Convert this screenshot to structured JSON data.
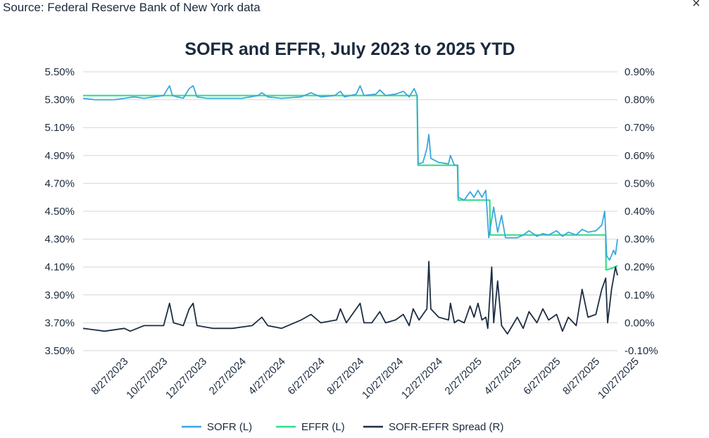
{
  "source": "Source: Federal Reserve Bank of New York data",
  "close_glyph": "×",
  "chart_data": {
    "type": "line",
    "title": "SOFR and EFFR, July 2023 to 2025 YTD",
    "x_tick_labels": [
      "8/27/2023",
      "10/27/2023",
      "12/27/2023",
      "2/27/2024",
      "4/27/2024",
      "6/27/2024",
      "8/27/2024",
      "10/27/2024",
      "12/27/2024",
      "2/27/2025",
      "4/27/2025",
      "6/27/2025",
      "8/27/2025",
      "10/27/2025"
    ],
    "x_range_months": [
      -1.1,
      26.1
    ],
    "y_left": {
      "min": 3.5,
      "max": 5.5,
      "step": 0.2,
      "tick_labels": [
        "3.50%",
        "3.70%",
        "3.90%",
        "4.10%",
        "4.30%",
        "4.50%",
        "4.70%",
        "4.90%",
        "5.10%",
        "5.30%",
        "5.50%"
      ]
    },
    "y_right": {
      "min": -0.1,
      "max": 0.9,
      "step": 0.1,
      "tick_labels": [
        "-0.10%",
        "0.00%",
        "0.10%",
        "0.20%",
        "0.30%",
        "0.40%",
        "0.50%",
        "0.60%",
        "0.70%",
        "0.80%",
        "0.90%"
      ]
    },
    "grid": true,
    "legend_position": "bottom",
    "series": [
      {
        "name": "SOFR (L)",
        "axis": "left",
        "color": "#3aa8dc",
        "points": [
          [
            -1.1,
            5.31
          ],
          [
            -0.5,
            5.3
          ],
          [
            0.5,
            5.3
          ],
          [
            1.0,
            5.31
          ],
          [
            1.5,
            5.32
          ],
          [
            2.0,
            5.31
          ],
          [
            2.5,
            5.32
          ],
          [
            3.0,
            5.33
          ],
          [
            3.3,
            5.4
          ],
          [
            3.45,
            5.33
          ],
          [
            3.7,
            5.32
          ],
          [
            4.0,
            5.31
          ],
          [
            4.3,
            5.38
          ],
          [
            4.5,
            5.4
          ],
          [
            4.7,
            5.32
          ],
          [
            5.2,
            5.31
          ],
          [
            6.0,
            5.31
          ],
          [
            7.0,
            5.31
          ],
          [
            7.8,
            5.33
          ],
          [
            8.0,
            5.35
          ],
          [
            8.3,
            5.32
          ],
          [
            9.0,
            5.31
          ],
          [
            10.0,
            5.32
          ],
          [
            10.5,
            5.35
          ],
          [
            11.0,
            5.32
          ],
          [
            11.7,
            5.33
          ],
          [
            12.0,
            5.36
          ],
          [
            12.2,
            5.32
          ],
          [
            12.8,
            5.34
          ],
          [
            13.0,
            5.4
          ],
          [
            13.2,
            5.33
          ],
          [
            13.8,
            5.34
          ],
          [
            14.0,
            5.37
          ],
          [
            14.3,
            5.33
          ],
          [
            14.8,
            5.34
          ],
          [
            15.2,
            5.36
          ],
          [
            15.5,
            5.32
          ],
          [
            15.75,
            5.38
          ],
          [
            15.9,
            5.33
          ],
          [
            15.95,
            4.84
          ],
          [
            16.2,
            4.85
          ],
          [
            16.4,
            4.95
          ],
          [
            16.5,
            5.05
          ],
          [
            16.6,
            4.88
          ],
          [
            17.0,
            4.85
          ],
          [
            17.5,
            4.84
          ],
          [
            17.6,
            4.9
          ],
          [
            17.8,
            4.83
          ],
          [
            17.95,
            4.83
          ],
          [
            18.0,
            4.6
          ],
          [
            18.3,
            4.58
          ],
          [
            18.6,
            4.64
          ],
          [
            18.8,
            4.6
          ],
          [
            19.0,
            4.65
          ],
          [
            19.2,
            4.6
          ],
          [
            19.4,
            4.65
          ],
          [
            19.55,
            4.31
          ],
          [
            19.8,
            4.53
          ],
          [
            20.0,
            4.35
          ],
          [
            20.2,
            4.47
          ],
          [
            20.4,
            4.31
          ],
          [
            21.0,
            4.31
          ],
          [
            21.3,
            4.33
          ],
          [
            21.6,
            4.36
          ],
          [
            22.0,
            4.32
          ],
          [
            22.3,
            4.34
          ],
          [
            22.6,
            4.33
          ],
          [
            23.0,
            4.36
          ],
          [
            23.3,
            4.32
          ],
          [
            23.6,
            4.35
          ],
          [
            24.0,
            4.33
          ],
          [
            24.3,
            4.37
          ],
          [
            24.6,
            4.35
          ],
          [
            25.0,
            4.36
          ],
          [
            25.3,
            4.4
          ],
          [
            25.45,
            4.5
          ],
          [
            25.55,
            4.18
          ],
          [
            25.7,
            4.15
          ],
          [
            25.9,
            4.22
          ],
          [
            26.0,
            4.19
          ],
          [
            26.1,
            4.3
          ]
        ]
      },
      {
        "name": "EFFR (L)",
        "axis": "left",
        "color": "#33dd88",
        "points": [
          [
            -1.1,
            5.33
          ],
          [
            15.9,
            5.33
          ],
          [
            15.95,
            4.83
          ],
          [
            17.97,
            4.83
          ],
          [
            17.99,
            4.58
          ],
          [
            19.6,
            4.58
          ],
          [
            19.62,
            4.33
          ],
          [
            25.5,
            4.33
          ],
          [
            25.52,
            4.08
          ],
          [
            25.8,
            4.09
          ],
          [
            26.1,
            4.11
          ]
        ]
      },
      {
        "name": "SOFR-EFFR Spread (R)",
        "axis": "right",
        "color": "#1d2d44",
        "points": [
          [
            -1.1,
            -0.02
          ],
          [
            0.0,
            -0.03
          ],
          [
            1.0,
            -0.02
          ],
          [
            1.3,
            -0.03
          ],
          [
            2.0,
            -0.01
          ],
          [
            2.5,
            -0.01
          ],
          [
            3.0,
            -0.01
          ],
          [
            3.3,
            0.07
          ],
          [
            3.5,
            0.0
          ],
          [
            4.0,
            -0.01
          ],
          [
            4.3,
            0.05
          ],
          [
            4.5,
            0.07
          ],
          [
            4.7,
            -0.01
          ],
          [
            5.5,
            -0.02
          ],
          [
            6.5,
            -0.02
          ],
          [
            7.5,
            -0.01
          ],
          [
            8.0,
            0.02
          ],
          [
            8.3,
            -0.01
          ],
          [
            9.0,
            -0.02
          ],
          [
            10.0,
            0.01
          ],
          [
            10.5,
            0.03
          ],
          [
            11.0,
            0.0
          ],
          [
            11.8,
            0.01
          ],
          [
            12.0,
            0.05
          ],
          [
            12.3,
            0.0
          ],
          [
            13.0,
            0.07
          ],
          [
            13.2,
            0.0
          ],
          [
            13.6,
            0.0
          ],
          [
            14.0,
            0.04
          ],
          [
            14.3,
            0.0
          ],
          [
            14.8,
            0.01
          ],
          [
            15.2,
            0.03
          ],
          [
            15.5,
            -0.01
          ],
          [
            15.7,
            0.05
          ],
          [
            16.0,
            0.01
          ],
          [
            16.4,
            0.05
          ],
          [
            16.5,
            0.22
          ],
          [
            16.6,
            0.05
          ],
          [
            17.0,
            0.02
          ],
          [
            17.5,
            0.01
          ],
          [
            17.6,
            0.07
          ],
          [
            17.8,
            0.0
          ],
          [
            18.0,
            0.01
          ],
          [
            18.3,
            0.0
          ],
          [
            18.6,
            0.06
          ],
          [
            18.8,
            0.02
          ],
          [
            19.0,
            0.07
          ],
          [
            19.2,
            0.01
          ],
          [
            19.4,
            0.02
          ],
          [
            19.5,
            -0.02
          ],
          [
            19.7,
            0.2
          ],
          [
            19.8,
            0.0
          ],
          [
            20.0,
            0.15
          ],
          [
            20.2,
            -0.01
          ],
          [
            20.5,
            -0.04
          ],
          [
            21.0,
            0.02
          ],
          [
            21.3,
            -0.02
          ],
          [
            21.6,
            0.04
          ],
          [
            22.0,
            0.0
          ],
          [
            22.3,
            0.05
          ],
          [
            22.6,
            0.01
          ],
          [
            23.0,
            0.03
          ],
          [
            23.3,
            -0.03
          ],
          [
            23.6,
            0.02
          ],
          [
            24.0,
            -0.01
          ],
          [
            24.3,
            0.12
          ],
          [
            24.6,
            0.02
          ],
          [
            25.0,
            0.03
          ],
          [
            25.3,
            0.12
          ],
          [
            25.5,
            0.16
          ],
          [
            25.6,
            0.0
          ],
          [
            25.8,
            0.12
          ],
          [
            26.0,
            0.2
          ],
          [
            26.1,
            0.17
          ]
        ]
      }
    ]
  }
}
